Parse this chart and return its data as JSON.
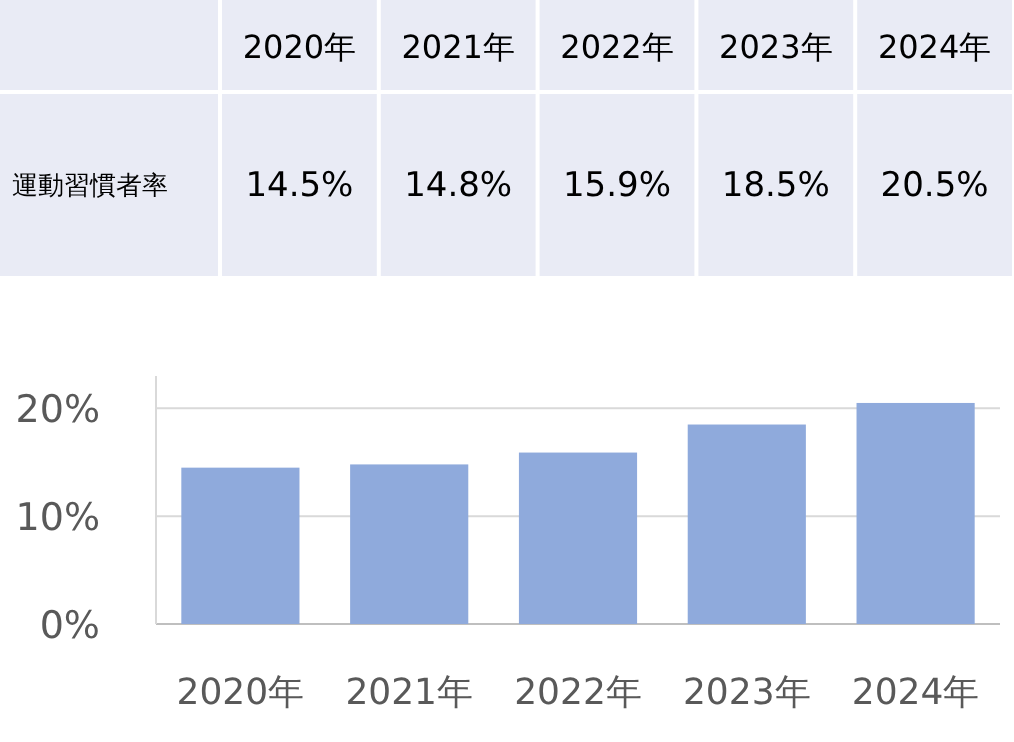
{
  "chart_data": {
    "type": "bar",
    "categories": [
      "2020年",
      "2021年",
      "2022年",
      "2023年",
      "2024年"
    ],
    "series": [
      {
        "name": "運動習慣者率",
        "color": "#8faadc",
        "values": [
          14.5,
          14.8,
          15.9,
          18.5,
          20.5
        ],
        "value_labels": [
          "14.5%",
          "14.8%",
          "15.9%",
          "18.5%",
          "20.5%"
        ]
      }
    ],
    "ylim": [
      0,
      23
    ],
    "yticks": [
      {
        "value": 0,
        "label": "0%"
      },
      {
        "value": 10,
        "label": "10%"
      },
      {
        "value": 20,
        "label": "20%"
      }
    ],
    "grid": "y"
  }
}
